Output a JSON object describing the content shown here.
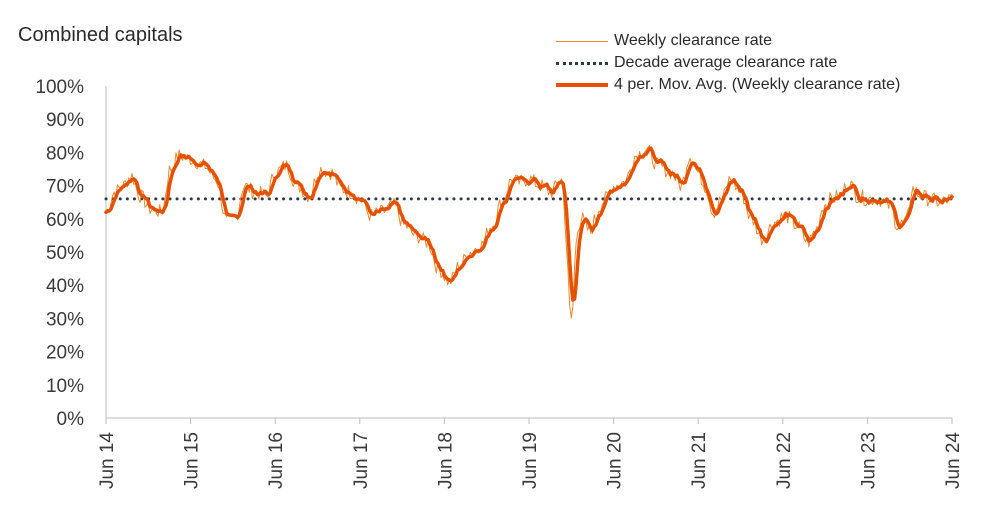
{
  "chart_data": {
    "type": "line",
    "title": "Combined capitals",
    "xlabel": "",
    "ylabel": "",
    "ylim": [
      0,
      100
    ],
    "yticks": [
      "100%",
      "90%",
      "80%",
      "70%",
      "60%",
      "50%",
      "40%",
      "30%",
      "20%",
      "10%",
      "0%"
    ],
    "ytick_values": [
      100,
      90,
      80,
      70,
      60,
      50,
      40,
      30,
      20,
      10,
      0
    ],
    "xticks": [
      "Jun 14",
      "Jun 15",
      "Jun 16",
      "Jun 17",
      "Jun 18",
      "Jun 19",
      "Jun 20",
      "Jun 21",
      "Jun 22",
      "Jun 23",
      "Jun 24"
    ],
    "xtick_values": [
      2014.42,
      2015.42,
      2016.42,
      2017.42,
      2018.42,
      2019.42,
      2020.42,
      2021.42,
      2022.42,
      2023.42,
      2024.42
    ],
    "xlim": [
      2014.42,
      2024.42
    ],
    "decade_average": 66,
    "legend": {
      "weekly": "Weekly clearance rate",
      "decade": "Decade average clearance rate",
      "mavg": "4 per. Mov. Avg. (Weekly clearance rate)"
    },
    "series_knots": {
      "name": "Weekly clearance rate",
      "x": [
        2014.42,
        2014.52,
        2014.62,
        2014.72,
        2014.82,
        2014.95,
        2015.08,
        2015.18,
        2015.28,
        2015.42,
        2015.58,
        2015.72,
        2015.85,
        2015.95,
        2016.05,
        2016.18,
        2016.32,
        2016.42,
        2016.55,
        2016.68,
        2016.82,
        2016.95,
        2017.08,
        2017.2,
        2017.32,
        2017.42,
        2017.55,
        2017.68,
        2017.82,
        2017.95,
        2018.08,
        2018.22,
        2018.35,
        2018.48,
        2018.6,
        2018.72,
        2018.85,
        2018.98,
        2019.1,
        2019.22,
        2019.3,
        2019.42,
        2019.55,
        2019.68,
        2019.8,
        2019.92,
        2020.0,
        2020.05,
        2020.1,
        2020.15,
        2020.2,
        2020.26,
        2020.32,
        2020.42,
        2020.55,
        2020.68,
        2020.8,
        2020.95,
        2021.1,
        2021.22,
        2021.32,
        2021.42,
        2021.5,
        2021.6,
        2021.7,
        2021.8,
        2021.92,
        2022.05,
        2022.18,
        2022.32,
        2022.45,
        2022.58,
        2022.72,
        2022.82,
        2022.9,
        2023.0,
        2023.1,
        2023.2,
        2023.3,
        2023.42,
        2023.55,
        2023.68,
        2023.78,
        2023.88,
        2023.95,
        2024.05,
        2024.15,
        2024.28,
        2024.42
      ],
      "y": [
        62,
        68,
        70,
        73,
        67,
        63,
        62,
        75,
        79,
        78,
        76,
        72,
        59,
        60,
        70,
        68,
        67,
        74,
        76,
        70,
        67,
        75,
        74,
        69,
        68,
        66,
        61,
        62,
        64,
        58,
        55,
        53,
        45,
        41,
        46,
        50,
        52,
        58,
        65,
        72,
        71,
        72,
        70,
        68,
        72,
        34,
        58,
        60,
        57,
        56,
        60,
        64,
        66,
        70,
        71,
        79,
        81,
        76,
        74,
        70,
        79,
        74,
        70,
        62,
        66,
        72,
        68,
        60,
        54,
        59,
        61,
        58,
        53,
        57,
        64,
        66,
        67,
        71,
        67,
        66,
        66,
        64,
        58,
        59,
        69,
        67,
        66,
        65,
        66
      ]
    }
  }
}
